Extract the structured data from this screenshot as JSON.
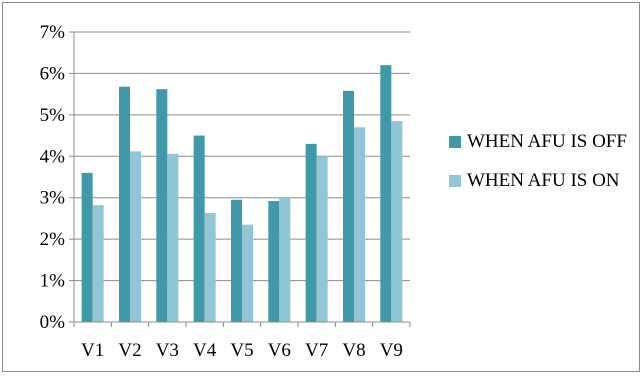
{
  "chart_data": {
    "type": "bar",
    "title": "",
    "xlabel": "",
    "ylabel": "",
    "categories": [
      "V1",
      "V2",
      "V3",
      "V4",
      "V5",
      "V6",
      "V7",
      "V8",
      "V9"
    ],
    "series": [
      {
        "name": "WHEN AFU IS OFF",
        "color": "#4198a9",
        "values": [
          3.6,
          5.68,
          5.62,
          4.5,
          2.95,
          2.92,
          4.3,
          5.58,
          6.2
        ]
      },
      {
        "name": "WHEN AFU IS ON",
        "color": "#92c6d6",
        "values": [
          2.82,
          4.12,
          4.06,
          2.63,
          2.35,
          3.0,
          4.0,
          4.7,
          4.85
        ]
      }
    ],
    "ylim": [
      0,
      7
    ],
    "yticks": [
      "0%",
      "1%",
      "2%",
      "3%",
      "4%",
      "5%",
      "6%",
      "7%"
    ],
    "grid": true,
    "legend_position": "right"
  }
}
